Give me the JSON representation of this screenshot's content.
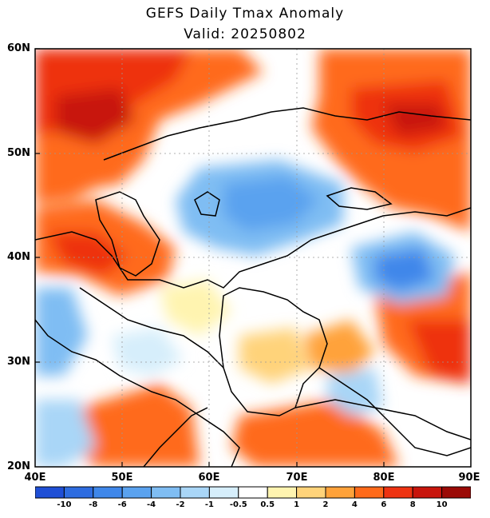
{
  "title": "GEFS Daily Tmax Anomaly",
  "subtitle": "Valid: 20250802",
  "lat_labels": [
    "60N",
    "50N",
    "40N",
    "30N",
    "20N"
  ],
  "lon_labels": [
    "40E",
    "50E",
    "60E",
    "70E",
    "80E",
    "90E"
  ],
  "colorbar": {
    "labels": [
      "-10",
      "-8",
      "-6",
      "-4",
      "-2",
      "-1",
      "-0.5",
      "0.5",
      "1",
      "2",
      "4",
      "6",
      "8",
      "10"
    ],
    "colors": [
      "#1f4fd6",
      "#2e6ce0",
      "#3f87ea",
      "#5aa2ef",
      "#7fbdf3",
      "#a9d6f7",
      "#d6eefb",
      "#ffffff",
      "#fff4b0",
      "#ffd37a",
      "#ffa23a",
      "#ff6a1a",
      "#ee3311",
      "#c8150c",
      "#9b0a06"
    ]
  },
  "map": {
    "projection": "lat-lon",
    "lon_range": [
      40,
      90
    ],
    "lat_range": [
      20,
      60
    ],
    "ocean_color": "#ffffff",
    "border_color": "#000000",
    "grid": "dotted"
  }
}
